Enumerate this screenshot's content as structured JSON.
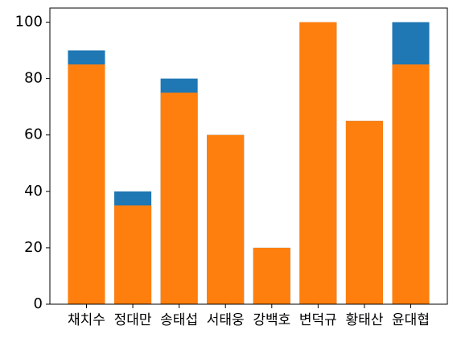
{
  "chart_data": {
    "type": "bar",
    "categories": [
      "채치수",
      "정대만",
      "송태섭",
      "서태웅",
      "강백호",
      "변덕규",
      "황태산",
      "윤대협"
    ],
    "series": [
      {
        "color": "#1f77b4",
        "values": [
          90,
          40,
          80,
          60,
          20,
          100,
          65,
          100
        ]
      },
      {
        "color": "#ff7f0e",
        "values": [
          85,
          35,
          75,
          60,
          20,
          100,
          65,
          85
        ]
      }
    ],
    "ylim": [
      0,
      105
    ],
    "yticks": [
      0,
      20,
      40,
      60,
      80,
      100
    ]
  }
}
